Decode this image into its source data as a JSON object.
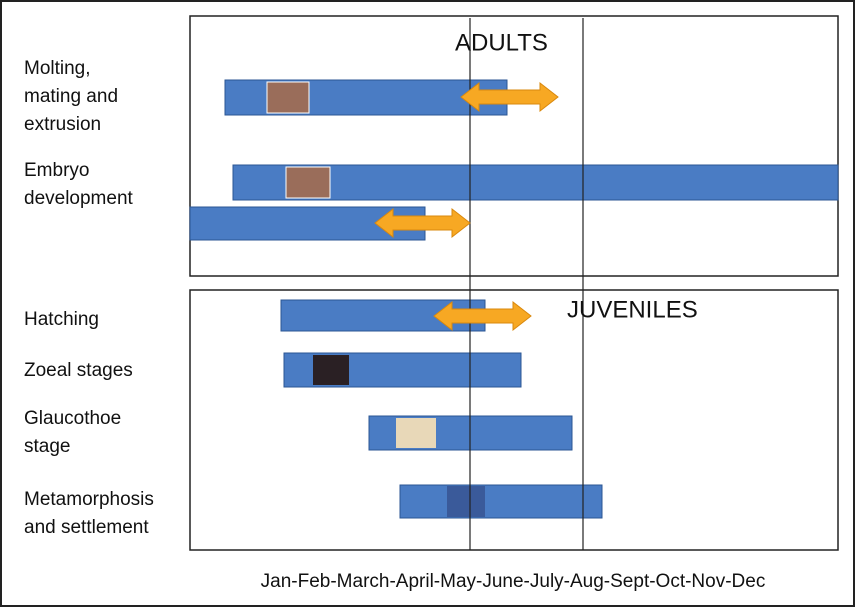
{
  "sections": [
    {
      "title": "ADULTS"
    },
    {
      "title": "JUVENILES"
    }
  ],
  "rows": [
    {
      "lines": [
        "Molting,",
        "mating and",
        "extrusion"
      ]
    },
    {
      "lines": [
        "Embryo",
        "development"
      ]
    },
    {
      "lines": [
        "Hatching"
      ]
    },
    {
      "lines": [
        "Zoeal stages"
      ]
    },
    {
      "lines": [
        "Glaucothoe",
        "stage"
      ]
    },
    {
      "lines": [
        "Metamorphosis",
        "and settlement"
      ]
    }
  ],
  "axis_label": "Jan-Feb-March-April-May-June-July-Aug-Sept-Oct-Nov-Dec"
}
